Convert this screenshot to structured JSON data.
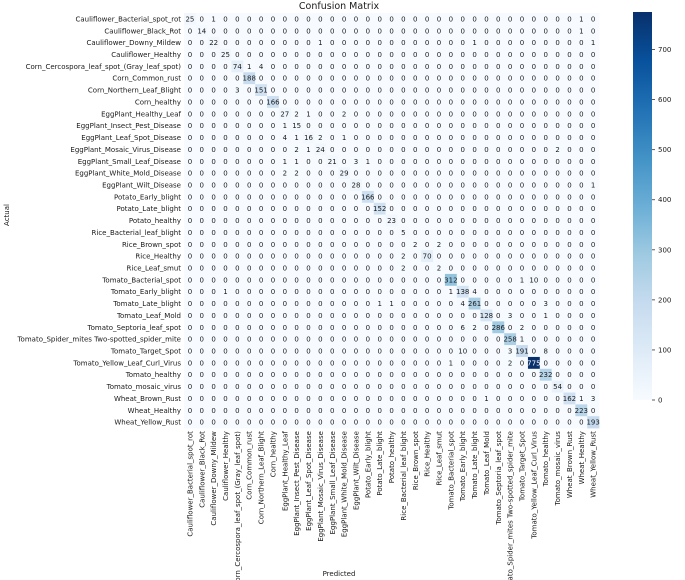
{
  "chart_data": {
    "type": "heatmap",
    "title": "Confusion Matrix",
    "xlabel": "Predicted",
    "ylabel": "Actual",
    "labels": [
      "Cauliflower_Bacterial_spot_rot",
      "Cauliflower_Black_Rot",
      "Cauliflower_Downy_Mildew",
      "Cauliflower_Healthy",
      "Corn_Cercospora_leaf_spot_(Gray_leaf_spot)",
      "Corn_Common_rust",
      "Corn_Northern_Leaf_Blight",
      "Corn_healthy",
      "EggPlant_Healthy_Leaf",
      "EggPlant_Insect_Pest_Disease",
      "EggPlant_Leaf_Spot_Disease",
      "EggPlant_Mosaic_Virus_Disease",
      "EggPlant_Small_Leaf_Disease",
      "EggPlant_White_Mold_Disease",
      "EggPlant_Wilt_Disease",
      "Potato_Early_blight",
      "Potato_Late_blight",
      "Potato_healthy",
      "Rice_Bacterial_leaf_blight",
      "Rice_Brown_spot",
      "Rice_Healthy",
      "Rice_Leaf_smut",
      "Tomato_Bacterial_spot",
      "Tomato_Early_blight",
      "Tomato_Late_blight",
      "Tomato_Leaf_Mold",
      "Tomato_Septoria_leaf_spot",
      "Tomato_Spider_mites Two-spotted_spider_mite",
      "Tomato_Target_Spot",
      "Tomato_Yellow_Leaf_Curl_Virus",
      "Tomato_healthy",
      "Tomato_mosaic_virus",
      "Wheat_Brown_Rust",
      "Wheat_Healthy",
      "Wheat_Yellow_Rust"
    ],
    "matrix": [
      [
        25,
        0,
        1,
        0,
        0,
        0,
        0,
        0,
        0,
        0,
        0,
        0,
        0,
        0,
        0,
        0,
        0,
        0,
        0,
        0,
        0,
        0,
        0,
        0,
        0,
        0,
        0,
        0,
        0,
        0,
        0,
        0,
        0,
        1,
        0
      ],
      [
        0,
        14,
        0,
        0,
        0,
        0,
        0,
        0,
        0,
        0,
        0,
        0,
        0,
        0,
        0,
        0,
        0,
        0,
        0,
        0,
        0,
        0,
        0,
        0,
        0,
        0,
        0,
        0,
        0,
        0,
        0,
        0,
        0,
        1,
        0
      ],
      [
        0,
        0,
        22,
        0,
        0,
        0,
        0,
        0,
        0,
        0,
        0,
        1,
        0,
        0,
        0,
        0,
        0,
        0,
        0,
        0,
        0,
        0,
        0,
        0,
        1,
        0,
        0,
        0,
        0,
        0,
        0,
        0,
        0,
        0,
        1
      ],
      [
        0,
        0,
        0,
        25,
        0,
        0,
        0,
        0,
        0,
        0,
        0,
        0,
        0,
        0,
        0,
        0,
        0,
        0,
        0,
        0,
        0,
        0,
        0,
        0,
        0,
        0,
        0,
        0,
        0,
        0,
        0,
        0,
        0,
        0,
        0
      ],
      [
        0,
        0,
        0,
        0,
        74,
        1,
        4,
        0,
        0,
        0,
        0,
        0,
        0,
        0,
        0,
        0,
        0,
        0,
        0,
        0,
        0,
        0,
        0,
        0,
        0,
        0,
        0,
        0,
        0,
        0,
        0,
        0,
        0,
        0,
        0
      ],
      [
        0,
        0,
        0,
        0,
        0,
        188,
        0,
        0,
        0,
        0,
        0,
        0,
        0,
        0,
        0,
        0,
        0,
        0,
        0,
        0,
        0,
        0,
        0,
        0,
        0,
        0,
        0,
        0,
        0,
        0,
        0,
        0,
        0,
        0,
        0
      ],
      [
        0,
        0,
        0,
        0,
        3,
        0,
        151,
        0,
        0,
        0,
        0,
        0,
        0,
        0,
        0,
        0,
        0,
        0,
        0,
        0,
        0,
        0,
        0,
        0,
        0,
        0,
        0,
        0,
        0,
        0,
        0,
        0,
        0,
        0,
        0
      ],
      [
        0,
        0,
        0,
        0,
        0,
        0,
        0,
        166,
        0,
        0,
        0,
        0,
        0,
        0,
        0,
        0,
        0,
        0,
        0,
        0,
        0,
        0,
        0,
        0,
        0,
        0,
        0,
        0,
        0,
        0,
        0,
        0,
        0,
        0,
        0
      ],
      [
        0,
        0,
        0,
        0,
        0,
        0,
        0,
        0,
        27,
        2,
        1,
        0,
        0,
        2,
        0,
        0,
        0,
        0,
        0,
        0,
        0,
        0,
        0,
        0,
        0,
        0,
        0,
        0,
        0,
        0,
        0,
        0,
        0,
        0,
        0
      ],
      [
        0,
        0,
        0,
        0,
        0,
        0,
        0,
        0,
        1,
        15,
        0,
        0,
        0,
        0,
        0,
        0,
        0,
        0,
        0,
        0,
        0,
        0,
        0,
        0,
        0,
        0,
        0,
        0,
        0,
        0,
        0,
        0,
        0,
        0,
        0
      ],
      [
        0,
        0,
        0,
        0,
        0,
        0,
        0,
        0,
        4,
        1,
        16,
        2,
        0,
        1,
        0,
        0,
        0,
        0,
        0,
        0,
        0,
        0,
        0,
        0,
        0,
        0,
        0,
        0,
        0,
        0,
        0,
        0,
        0,
        0,
        0
      ],
      [
        0,
        0,
        0,
        0,
        0,
        0,
        0,
        0,
        0,
        2,
        1,
        24,
        0,
        0,
        0,
        0,
        0,
        0,
        0,
        0,
        0,
        0,
        0,
        0,
        0,
        0,
        0,
        0,
        0,
        0,
        0,
        2,
        0,
        0,
        0
      ],
      [
        0,
        0,
        0,
        0,
        0,
        0,
        0,
        0,
        1,
        1,
        0,
        0,
        21,
        0,
        3,
        1,
        0,
        0,
        0,
        0,
        0,
        0,
        0,
        0,
        0,
        0,
        0,
        0,
        0,
        0,
        0,
        0,
        0,
        0,
        0
      ],
      [
        0,
        0,
        0,
        0,
        0,
        0,
        0,
        0,
        2,
        2,
        0,
        0,
        0,
        29,
        0,
        0,
        0,
        0,
        0,
        0,
        0,
        0,
        0,
        0,
        0,
        0,
        0,
        0,
        0,
        0,
        0,
        0,
        0,
        0,
        0
      ],
      [
        0,
        0,
        0,
        0,
        0,
        0,
        0,
        0,
        0,
        0,
        0,
        0,
        0,
        0,
        28,
        0,
        0,
        0,
        0,
        0,
        0,
        0,
        0,
        0,
        0,
        0,
        0,
        0,
        0,
        0,
        0,
        0,
        0,
        0,
        1
      ],
      [
        0,
        0,
        0,
        0,
        0,
        0,
        0,
        0,
        0,
        0,
        0,
        0,
        0,
        0,
        0,
        166,
        0,
        0,
        0,
        0,
        0,
        0,
        0,
        0,
        0,
        0,
        0,
        0,
        0,
        0,
        0,
        0,
        0,
        0,
        0
      ],
      [
        0,
        0,
        0,
        0,
        0,
        0,
        0,
        0,
        0,
        0,
        0,
        0,
        0,
        0,
        0,
        0,
        152,
        0,
        0,
        0,
        0,
        0,
        0,
        0,
        0,
        0,
        0,
        0,
        0,
        0,
        0,
        0,
        0,
        0,
        0
      ],
      [
        0,
        0,
        0,
        0,
        0,
        0,
        0,
        0,
        0,
        0,
        0,
        0,
        0,
        0,
        0,
        0,
        0,
        23,
        0,
        0,
        0,
        0,
        0,
        0,
        0,
        0,
        0,
        0,
        0,
        0,
        0,
        0,
        0,
        0,
        0
      ],
      [
        0,
        0,
        0,
        0,
        0,
        0,
        0,
        0,
        0,
        0,
        0,
        0,
        0,
        0,
        0,
        0,
        0,
        0,
        5,
        0,
        0,
        0,
        0,
        0,
        0,
        0,
        0,
        0,
        0,
        0,
        0,
        0,
        0,
        0,
        0
      ],
      [
        0,
        0,
        0,
        0,
        0,
        0,
        0,
        0,
        0,
        0,
        0,
        0,
        0,
        0,
        0,
        0,
        0,
        0,
        0,
        2,
        0,
        2,
        0,
        0,
        0,
        0,
        0,
        0,
        0,
        0,
        0,
        0,
        0,
        0,
        0
      ],
      [
        0,
        0,
        0,
        0,
        0,
        0,
        0,
        0,
        0,
        0,
        0,
        0,
        0,
        0,
        0,
        0,
        0,
        0,
        2,
        0,
        70,
        0,
        0,
        0,
        0,
        0,
        0,
        0,
        0,
        0,
        0,
        0,
        0,
        0,
        0
      ],
      [
        0,
        0,
        0,
        0,
        0,
        0,
        0,
        0,
        0,
        0,
        0,
        0,
        0,
        0,
        0,
        0,
        0,
        0,
        2,
        0,
        0,
        2,
        0,
        0,
        0,
        0,
        0,
        0,
        0,
        0,
        0,
        0,
        0,
        0,
        0
      ],
      [
        0,
        0,
        0,
        0,
        0,
        0,
        0,
        0,
        0,
        0,
        0,
        0,
        0,
        0,
        0,
        0,
        0,
        0,
        0,
        0,
        0,
        0,
        312,
        0,
        0,
        0,
        0,
        0,
        1,
        10,
        0,
        0,
        0,
        0,
        0
      ],
      [
        0,
        0,
        0,
        1,
        0,
        0,
        0,
        0,
        0,
        0,
        0,
        0,
        0,
        0,
        0,
        0,
        0,
        0,
        0,
        0,
        0,
        0,
        1,
        138,
        4,
        0,
        0,
        0,
        0,
        0,
        0,
        0,
        0,
        0,
        0
      ],
      [
        0,
        0,
        0,
        0,
        0,
        0,
        0,
        0,
        0,
        0,
        0,
        0,
        0,
        0,
        0,
        0,
        1,
        1,
        0,
        0,
        0,
        0,
        0,
        4,
        261,
        0,
        0,
        0,
        0,
        0,
        3,
        0,
        0,
        0,
        0
      ],
      [
        0,
        0,
        0,
        0,
        0,
        0,
        0,
        0,
        0,
        0,
        0,
        0,
        0,
        0,
        0,
        0,
        0,
        0,
        0,
        0,
        0,
        0,
        0,
        0,
        0,
        128,
        0,
        3,
        0,
        0,
        1,
        0,
        0,
        0,
        0
      ],
      [
        0,
        0,
        0,
        0,
        0,
        0,
        0,
        0,
        0,
        0,
        0,
        0,
        0,
        0,
        0,
        0,
        0,
        0,
        0,
        0,
        0,
        0,
        0,
        6,
        2,
        0,
        286,
        0,
        2,
        0,
        0,
        0,
        0,
        0,
        0
      ],
      [
        0,
        0,
        0,
        0,
        0,
        0,
        0,
        0,
        0,
        0,
        0,
        0,
        0,
        0,
        0,
        0,
        0,
        0,
        0,
        0,
        0,
        0,
        0,
        0,
        0,
        0,
        0,
        258,
        1,
        0,
        0,
        0,
        0,
        0,
        0
      ],
      [
        0,
        0,
        0,
        0,
        0,
        0,
        0,
        0,
        0,
        0,
        0,
        0,
        0,
        0,
        0,
        0,
        0,
        0,
        0,
        0,
        0,
        0,
        0,
        10,
        0,
        0,
        0,
        3,
        191,
        0,
        8,
        0,
        0,
        0,
        0
      ],
      [
        0,
        0,
        0,
        0,
        0,
        0,
        0,
        0,
        0,
        0,
        0,
        0,
        0,
        0,
        0,
        0,
        0,
        0,
        0,
        0,
        0,
        0,
        1,
        0,
        0,
        0,
        0,
        2,
        0,
        775,
        0,
        0,
        0,
        0,
        0
      ],
      [
        0,
        0,
        0,
        0,
        0,
        0,
        0,
        0,
        0,
        0,
        0,
        0,
        0,
        0,
        0,
        0,
        0,
        0,
        0,
        0,
        0,
        0,
        0,
        0,
        0,
        0,
        0,
        0,
        0,
        0,
        232,
        0,
        0,
        0,
        0
      ],
      [
        0,
        0,
        0,
        0,
        0,
        0,
        0,
        0,
        0,
        0,
        0,
        0,
        0,
        0,
        0,
        0,
        0,
        0,
        0,
        0,
        0,
        0,
        0,
        0,
        0,
        0,
        0,
        0,
        0,
        0,
        0,
        54,
        0,
        0,
        0
      ],
      [
        0,
        0,
        0,
        0,
        0,
        0,
        0,
        0,
        0,
        0,
        0,
        0,
        0,
        0,
        0,
        0,
        0,
        0,
        0,
        0,
        0,
        0,
        0,
        0,
        0,
        1,
        0,
        0,
        0,
        0,
        0,
        0,
        162,
        1,
        3
      ],
      [
        0,
        0,
        0,
        0,
        0,
        0,
        0,
        0,
        0,
        0,
        0,
        0,
        0,
        0,
        0,
        0,
        0,
        0,
        0,
        0,
        0,
        0,
        0,
        0,
        0,
        0,
        0,
        0,
        0,
        0,
        0,
        0,
        0,
        223,
        0
      ],
      [
        0,
        0,
        0,
        0,
        0,
        0,
        0,
        0,
        0,
        0,
        0,
        0,
        0,
        0,
        0,
        0,
        0,
        0,
        0,
        0,
        0,
        0,
        0,
        0,
        0,
        0,
        0,
        0,
        0,
        0,
        0,
        0,
        0,
        0,
        193
      ]
    ],
    "colorbar": {
      "min": 0,
      "max": 775,
      "ticks": [
        0,
        100,
        200,
        300,
        400,
        500,
        600,
        700
      ],
      "colormap": "Blues",
      "low_color": "#f7fbff",
      "high_color": "#08306b"
    },
    "text_color_dark": "#1a1a1a",
    "text_color_light": "#ffffff"
  }
}
